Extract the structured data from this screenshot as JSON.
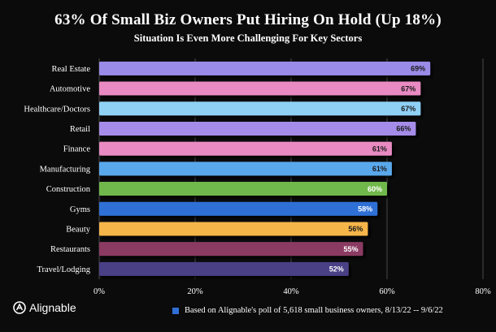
{
  "chart_data": {
    "type": "bar",
    "orientation": "horizontal",
    "title": "63% Of Small Biz Owners Put Hiring On Hold (Up 18%)",
    "subtitle": "Situation Is Even More Challenging For Key Sectors",
    "categories": [
      "Real Estate",
      "Automotive",
      "Healthcare/Doctors",
      "Retail",
      "Finance",
      "Manufacturing",
      "Construction",
      "Gyms",
      "Beauty",
      "Restaurants",
      "Travel/Lodging"
    ],
    "values": [
      69,
      67,
      67,
      66,
      61,
      61,
      60,
      58,
      56,
      55,
      52
    ],
    "value_labels": [
      "69%",
      "67%",
      "67%",
      "66%",
      "61%",
      "61%",
      "60%",
      "58%",
      "56%",
      "55%",
      "52%"
    ],
    "bar_colors": [
      "#9b8be8",
      "#e98ac2",
      "#8fd0f5",
      "#a58ce9",
      "#e98ac2",
      "#5aa8ec",
      "#6fb84c",
      "#2f6fd6",
      "#f5b548",
      "#8b3a62",
      "#4a3f86"
    ],
    "value_label_colors": [
      "#1a1a1a",
      "#1a1a1a",
      "#1a1a1a",
      "#1a1a1a",
      "#1a1a1a",
      "#1a1a1a",
      "#ffffff",
      "#ffffff",
      "#1a1a1a",
      "#ffffff",
      "#ffffff"
    ],
    "x_ticks": [
      0,
      20,
      40,
      60,
      80
    ],
    "x_tick_labels": [
      "0%",
      "20%",
      "40%",
      "60%",
      "80%"
    ],
    "xlim": [
      0,
      80
    ],
    "grid": true,
    "legend": "bottom",
    "legend_label": "Based on Alignable's poll of 5,618 small business owners, 8/13/22 -- 9/6/22",
    "legend_color": "#2f6fd6"
  },
  "brand": {
    "name": "Alignable"
  },
  "colors": {
    "background": "#0b0b0c",
    "gridline": "#5a5a5a",
    "text": "#ffffff"
  }
}
